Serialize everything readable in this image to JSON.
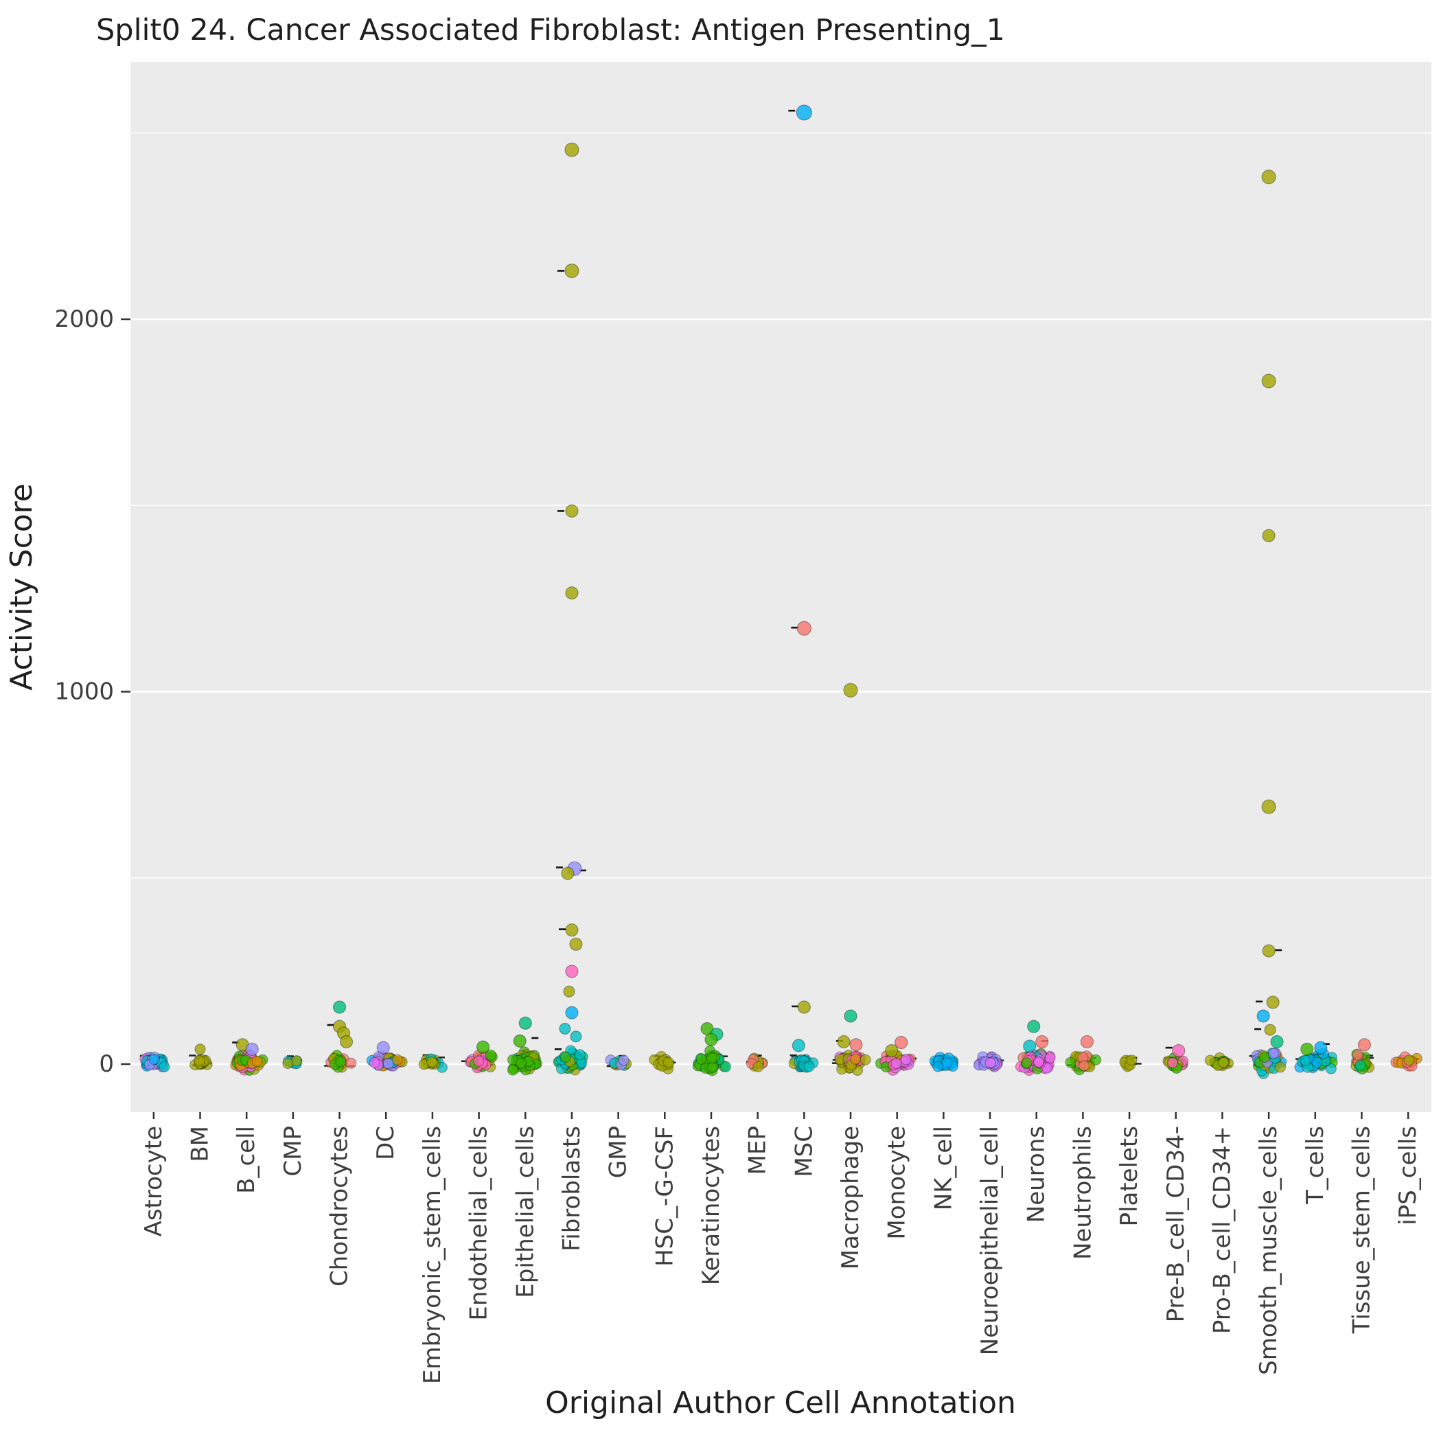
{
  "title": "Split0 24. Cancer Associated Fibroblast: Antigen Presenting_1",
  "chart_data": {
    "type": "scatter",
    "subtype": "jitter-strip",
    "title": "Split0 24. Cancer Associated Fibroblast: Antigen Presenting_1",
    "xlabel": "Original Author Cell Annotation",
    "ylabel": "Activity Score",
    "ylim": [
      -130,
      2700
    ],
    "yticks": [
      0,
      1000,
      2000
    ],
    "yticks_minor": [
      500,
      1500,
      2500
    ],
    "grid": true,
    "legend": "none",
    "panel_bg": "#EBEBEB",
    "grid_color": "#FFFFFF",
    "text_color": "#3D3D3D",
    "marker_dash_color": "#111111",
    "palette": [
      "#F8766D",
      "#D89000",
      "#A3A500",
      "#39B600",
      "#00BF7D",
      "#00BFC4",
      "#00B0F6",
      "#9590FF",
      "#E76BF3",
      "#FF62BC"
    ],
    "categories": [
      {
        "label": "Astrocyte",
        "cluster": {
          "n": 36,
          "spread": 50,
          "width": 26,
          "colors": [
            "#9590FF",
            "#9590FF",
            "#9590FF",
            "#9590FF",
            "#9590FF",
            "#00BFC4",
            "#00B0F6",
            "#E76BF3"
          ]
        },
        "outliers": [],
        "dash_n": 6,
        "dashes": []
      },
      {
        "label": "BM",
        "cluster": {
          "n": 14,
          "spread": 40,
          "width": 18,
          "colors": [
            "#A3A500"
          ]
        },
        "outliers": [
          {
            "v": 40,
            "c": "#A3A500",
            "r": 7.5
          }
        ],
        "dash_n": 5,
        "dashes": []
      },
      {
        "label": "B_cell",
        "cluster": {
          "n": 55,
          "spread": 70,
          "width": 30,
          "colors": [
            "#A3A500",
            "#A3A500",
            "#39B600",
            "#E76BF3",
            "#9590FF",
            "#F8766D",
            "#FF62BC",
            "#D89000"
          ]
        },
        "outliers": [
          {
            "v": 52,
            "c": "#A3A500",
            "dx": -6
          },
          {
            "v": 40,
            "c": "#9590FF",
            "dx": 8
          }
        ],
        "dash_n": 8,
        "dashes": [
          [
            58,
            -16
          ]
        ]
      },
      {
        "label": "CMP",
        "cluster": {
          "n": 8,
          "spread": 30,
          "width": 14,
          "colors": [
            "#00BFC4",
            "#00BFC4",
            "#A3A500"
          ]
        },
        "outliers": [],
        "dash_n": 3,
        "dashes": []
      },
      {
        "label": "Chondrocytes",
        "cluster": {
          "n": 24,
          "spread": 60,
          "width": 22,
          "colors": [
            "#A3A500",
            "#A3A500",
            "#F8766D",
            "#39B600"
          ]
        },
        "outliers": [
          {
            "v": 153,
            "c": "#00BF7D"
          },
          {
            "v": 101,
            "c": "#A3A500"
          },
          {
            "v": 83,
            "c": "#A3A500",
            "dx": 6
          },
          {
            "v": 60,
            "c": "#A3A500",
            "dx": 10
          }
        ],
        "dash_n": 5,
        "dashes": [
          [
            105,
            -13
          ]
        ]
      },
      {
        "label": "DC",
        "cluster": {
          "n": 42,
          "spread": 60,
          "width": 28,
          "colors": [
            "#9590FF",
            "#A3A500",
            "#F8766D",
            "#39B600",
            "#E76BF3",
            "#00B0F6",
            "#D89000"
          ]
        },
        "outliers": [
          {
            "v": 44,
            "c": "#9590FF",
            "dx": -4
          }
        ],
        "dash_n": 7,
        "dashes": []
      },
      {
        "label": "Embryonic_stem_cells",
        "cluster": {
          "n": 18,
          "spread": 40,
          "width": 20,
          "colors": [
            "#A3A500",
            "#A3A500",
            "#00BFC4"
          ]
        },
        "outliers": [],
        "dash_n": 5,
        "dashes": []
      },
      {
        "label": "Endothelial_cells",
        "cluster": {
          "n": 36,
          "spread": 60,
          "width": 26,
          "colors": [
            "#39B600",
            "#39B600",
            "#A3A500",
            "#E76BF3",
            "#F8766D",
            "#FF62BC"
          ]
        },
        "outliers": [
          {
            "v": 46,
            "c": "#39B600",
            "dx": 6
          }
        ],
        "dash_n": 6,
        "dashes": []
      },
      {
        "label": "Epithelial_cells",
        "cluster": {
          "n": 55,
          "spread": 75,
          "width": 30,
          "colors": [
            "#39B600",
            "#39B600",
            "#39B600",
            "#A3A500",
            "#00BF7D"
          ]
        },
        "outliers": [
          {
            "v": 110,
            "c": "#00BF7D"
          },
          {
            "v": 62,
            "c": "#39B600",
            "dx": -8
          }
        ],
        "dash_n": 6,
        "dashes": [
          [
            70,
            14
          ]
        ]
      },
      {
        "label": "Fibroblasts",
        "cluster": {
          "n": 42,
          "spread": 70,
          "width": 26,
          "colors": [
            "#00BFC4",
            "#00BFC4",
            "#00BFC4",
            "#00BF7D",
            "#39B600",
            "#A3A500"
          ]
        },
        "outliers": [
          {
            "v": 2455,
            "c": "#A3A500",
            "r": 10
          },
          {
            "v": 2130,
            "c": "#A3A500",
            "r": 10
          },
          {
            "v": 1485,
            "c": "#A3A500",
            "r": 9
          },
          {
            "v": 1265,
            "c": "#A3A500",
            "r": 9
          },
          {
            "v": 525,
            "c": "#9590FF",
            "dx": 4,
            "r": 10
          },
          {
            "v": 512,
            "c": "#A3A500",
            "dx": -6,
            "r": 9
          },
          {
            "v": 360,
            "c": "#A3A500",
            "r": 9
          },
          {
            "v": 322,
            "c": "#A3A500",
            "dx": 6,
            "r": 9
          },
          {
            "v": 249,
            "c": "#FF62BC",
            "r": 9
          },
          {
            "v": 195,
            "c": "#A3A500",
            "dx": -4,
            "r": 8
          },
          {
            "v": 138,
            "c": "#00B0F6",
            "r": 9
          },
          {
            "v": 95,
            "c": "#00BFC4",
            "dx": -10,
            "r": 8
          },
          {
            "v": 74,
            "c": "#00BFC4",
            "dx": 6,
            "r": 8
          }
        ],
        "dash_n": 6,
        "dashes": [
          [
            2130,
            -16
          ],
          [
            1485,
            -16
          ],
          [
            528,
            -18
          ],
          [
            520,
            16
          ],
          [
            362,
            -14
          ],
          [
            40,
            -20
          ]
        ]
      },
      {
        "label": "GMP",
        "cluster": {
          "n": 12,
          "spread": 40,
          "width": 18,
          "colors": [
            "#A3A500",
            "#9590FF",
            "#00BFC4"
          ]
        },
        "outliers": [],
        "dash_n": 4,
        "dashes": []
      },
      {
        "label": "HSC_-G-CSF",
        "cluster": {
          "n": 15,
          "spread": 40,
          "width": 18,
          "colors": [
            "#A3A500"
          ]
        },
        "outliers": [],
        "dash_n": 5,
        "dashes": []
      },
      {
        "label": "Keratinocytes",
        "cluster": {
          "n": 46,
          "spread": 70,
          "width": 28,
          "colors": [
            "#39B600",
            "#39B600",
            "#39B600",
            "#00BF7D"
          ]
        },
        "outliers": [
          {
            "v": 95,
            "c": "#39B600",
            "dx": -6
          },
          {
            "v": 80,
            "c": "#00BF7D",
            "dx": 8
          },
          {
            "v": 66,
            "c": "#39B600"
          }
        ],
        "dash_n": 4,
        "dashes": []
      },
      {
        "label": "MEP",
        "cluster": {
          "n": 10,
          "spread": 35,
          "width": 16,
          "colors": [
            "#A3A500",
            "#F8766D"
          ]
        },
        "outliers": [],
        "dash_n": 4,
        "dashes": []
      },
      {
        "label": "MSC",
        "cluster": {
          "n": 22,
          "spread": 50,
          "width": 20,
          "colors": [
            "#00BFC4",
            "#00BFC4",
            "#00BFC4",
            "#A3A500"
          ]
        },
        "outliers": [
          {
            "v": 2555,
            "c": "#00B0F6",
            "r": 11
          },
          {
            "v": 1170,
            "c": "#F8766D",
            "r": 10
          },
          {
            "v": 153,
            "c": "#A3A500",
            "r": 9
          },
          {
            "v": 50,
            "c": "#00BFC4",
            "dx": -8
          }
        ],
        "dash_n": 5,
        "dashes": [
          [
            2560,
            -18
          ],
          [
            1172,
            -14
          ],
          [
            155,
            -13
          ]
        ]
      },
      {
        "label": "Macrophage",
        "cluster": {
          "n": 46,
          "spread": 65,
          "width": 30,
          "colors": [
            "#A3A500",
            "#A3A500",
            "#A3A500",
            "#F8766D",
            "#E76BF3",
            "#39B600",
            "#D89000",
            "#FF62BC"
          ]
        },
        "outliers": [
          {
            "v": 1004,
            "c": "#A3A500",
            "r": 10
          },
          {
            "v": 129,
            "c": "#00BF7D",
            "r": 9
          },
          {
            "v": 60,
            "c": "#A3A500",
            "dx": -10
          },
          {
            "v": 52,
            "c": "#F8766D",
            "dx": 8
          }
        ],
        "dash_n": 7,
        "dashes": [
          [
            62,
            -16
          ]
        ]
      },
      {
        "label": "Monocyte",
        "cluster": {
          "n": 50,
          "spread": 60,
          "width": 30,
          "colors": [
            "#E76BF3",
            "#E76BF3",
            "#FF62BC",
            "#FF62BC",
            "#A3A500",
            "#39B600",
            "#F8766D",
            "#D89000"
          ]
        },
        "outliers": [
          {
            "v": 58,
            "c": "#F8766D",
            "dx": 6
          },
          {
            "v": 36,
            "c": "#A3A500",
            "dx": -8
          }
        ],
        "dash_n": 6,
        "dashes": []
      },
      {
        "label": "NK_cell",
        "cluster": {
          "n": 28,
          "spread": 50,
          "width": 22,
          "colors": [
            "#00B0F6",
            "#00B0F6",
            "#00B0F6",
            "#00BFC4"
          ]
        },
        "outliers": [],
        "dash_n": 5,
        "dashes": []
      },
      {
        "label": "Neuroepithelial_cell",
        "cluster": {
          "n": 28,
          "spread": 50,
          "width": 24,
          "colors": [
            "#9590FF",
            "#9590FF",
            "#9590FF",
            "#E76BF3"
          ]
        },
        "outliers": [],
        "dash_n": 5,
        "dashes": []
      },
      {
        "label": "Neurons",
        "cluster": {
          "n": 55,
          "spread": 70,
          "width": 30,
          "colors": [
            "#E76BF3",
            "#E76BF3",
            "#FF62BC",
            "#FF62BC",
            "#FF62BC",
            "#39B600",
            "#00BFC4",
            "#F8766D"
          ]
        },
        "outliers": [
          {
            "v": 101,
            "c": "#00BF7D",
            "dx": -4
          },
          {
            "v": 60,
            "c": "#F8766D",
            "dx": 8
          },
          {
            "v": 48,
            "c": "#00BFC4",
            "dx": -10
          }
        ],
        "dash_n": 6,
        "dashes": [
          [
            62,
            12
          ]
        ]
      },
      {
        "label": "Neutrophils",
        "cluster": {
          "n": 28,
          "spread": 55,
          "width": 24,
          "colors": [
            "#A3A500",
            "#A3A500",
            "#39B600",
            "#F8766D"
          ]
        },
        "outliers": [
          {
            "v": 60,
            "c": "#F8766D",
            "dx": 6
          }
        ],
        "dash_n": 5,
        "dashes": []
      },
      {
        "label": "Platelets",
        "cluster": {
          "n": 10,
          "spread": 35,
          "width": 16,
          "colors": [
            "#A3A500"
          ]
        },
        "outliers": [],
        "dash_n": 3,
        "dashes": []
      },
      {
        "label": "Pre-B_cell_CD34-",
        "cluster": {
          "n": 18,
          "spread": 45,
          "width": 20,
          "colors": [
            "#39B600",
            "#39B600",
            "#FF62BC",
            "#A3A500"
          ]
        },
        "outliers": [
          {
            "v": 36,
            "c": "#FF62BC",
            "dx": 4
          }
        ],
        "dash_n": 4,
        "dashes": [
          [
            44,
            -10
          ]
        ]
      },
      {
        "label": "Pro-B_cell_CD34+",
        "cluster": {
          "n": 18,
          "spread": 45,
          "width": 20,
          "colors": [
            "#A3A500",
            "#A3A500",
            "#39B600"
          ]
        },
        "outliers": [],
        "dash_n": 4,
        "dashes": []
      },
      {
        "label": "Smooth_muscle_cells",
        "cluster": {
          "n": 48,
          "spread": 75,
          "width": 30,
          "colors": [
            "#A3A500",
            "#A3A500",
            "#A3A500",
            "#00BFC4",
            "#9590FF",
            "#39B600",
            "#00B0F6",
            "#D89000"
          ]
        },
        "outliers": [
          {
            "v": 2382,
            "c": "#A3A500",
            "r": 10
          },
          {
            "v": 1834,
            "c": "#A3A500",
            "r": 10
          },
          {
            "v": 1419,
            "c": "#A3A500",
            "r": 9
          },
          {
            "v": 691,
            "c": "#A3A500",
            "r": 10
          },
          {
            "v": 304,
            "c": "#A3A500",
            "r": 9
          },
          {
            "v": 166,
            "c": "#A3A500",
            "dx": 6,
            "r": 9
          },
          {
            "v": 129,
            "c": "#00B0F6",
            "dx": -8,
            "r": 9
          },
          {
            "v": 92,
            "c": "#A3A500",
            "dx": 2,
            "r": 8
          },
          {
            "v": 60,
            "c": "#00BF7D",
            "dx": 12
          }
        ],
        "dash_n": 7,
        "dashes": [
          [
            306,
            14
          ],
          [
            168,
            -14
          ],
          [
            94,
            -16
          ]
        ]
      },
      {
        "label": "T_cells",
        "cluster": {
          "n": 50,
          "spread": 60,
          "width": 30,
          "colors": [
            "#00B0F6",
            "#00B0F6",
            "#00B0F6",
            "#00BFC4",
            "#00BFC4",
            "#39B600"
          ]
        },
        "outliers": [
          {
            "v": 44,
            "c": "#00B0F6",
            "dx": 8
          },
          {
            "v": 40,
            "c": "#39B600",
            "dx": -12
          }
        ],
        "dash_n": 7,
        "dashes": [
          [
            54,
            16
          ]
        ]
      },
      {
        "label": "Tissue_stem_cells",
        "cluster": {
          "n": 24,
          "spread": 55,
          "width": 24,
          "colors": [
            "#39B600",
            "#39B600",
            "#F8766D",
            "#A3A500",
            "#00BF7D"
          ]
        },
        "outliers": [
          {
            "v": 52,
            "c": "#F8766D",
            "dx": 4
          }
        ],
        "dash_n": 5,
        "dashes": []
      },
      {
        "label": "iPS_cells",
        "cluster": {
          "n": 16,
          "spread": 45,
          "width": 20,
          "colors": [
            "#A3A500",
            "#D89000",
            "#F8766D"
          ]
        },
        "outliers": [],
        "dash_n": 4,
        "dashes": []
      }
    ]
  }
}
